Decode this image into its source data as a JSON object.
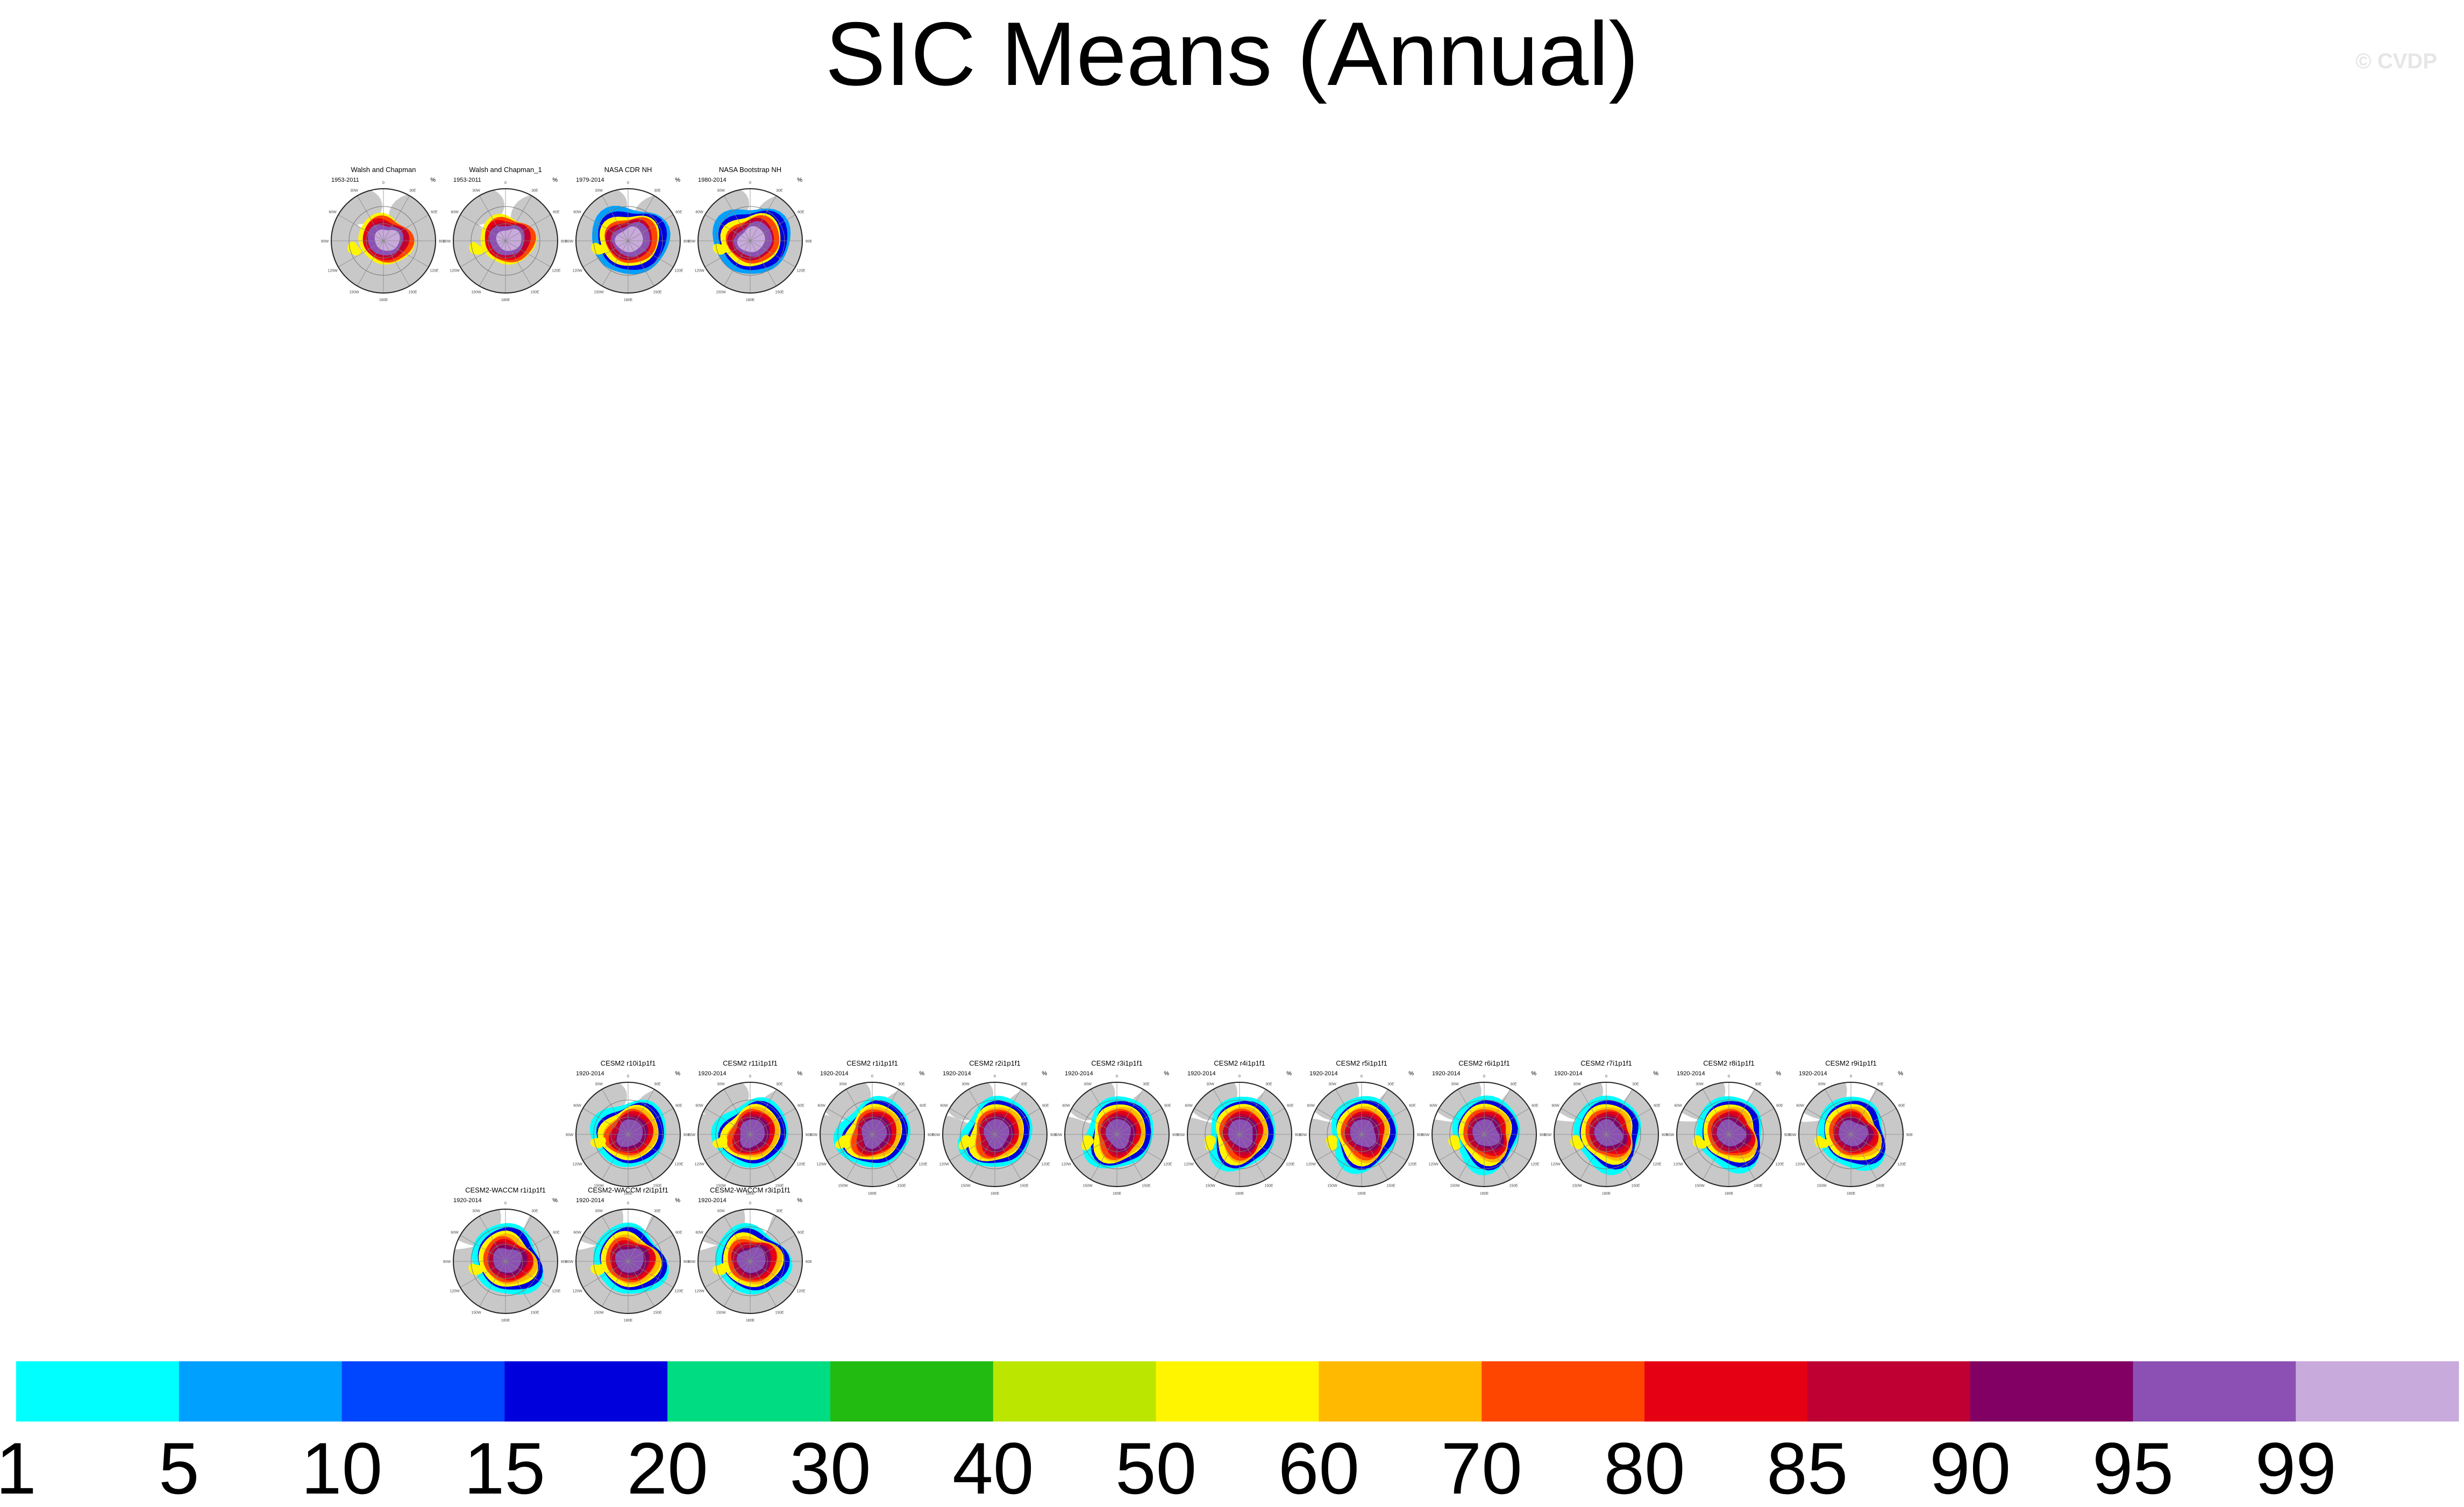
{
  "title": "SIC Means (Annual)",
  "watermark": "© CVDP",
  "colors": {
    "land": "#c8c8c8",
    "ocean": "#ffffff"
  },
  "chart_data": {
    "type": "heatmap",
    "title": "SIC Means (Annual)",
    "units": "%",
    "colorbar": {
      "levels": [
        1,
        5,
        10,
        15,
        20,
        30,
        40,
        50,
        60,
        70,
        80,
        85,
        90,
        95,
        99
      ],
      "colors": [
        "#00ffff",
        "#00a0ff",
        "#0046ff",
        "#0000dc",
        "#00dc82",
        "#22bb11",
        "#bbe600",
        "#fff500",
        "#ffb900",
        "#ff4600",
        "#e60014",
        "#be0032",
        "#820064",
        "#8c50b4",
        "#c8aadc"
      ]
    },
    "panels": [
      {
        "title": "Walsh and Chapman",
        "period": "1953-2011",
        "unit": "%",
        "row": 0,
        "col": 2,
        "style": "obs"
      },
      {
        "title": "Walsh and Chapman_1",
        "period": "1953-2011",
        "unit": "%",
        "row": 0,
        "col": 3,
        "style": "obs"
      },
      {
        "title": "NASA CDR NH",
        "period": "1979-2014",
        "unit": "%",
        "row": 0,
        "col": 4,
        "style": "sat"
      },
      {
        "title": "NASA Bootstrap NH",
        "period": "1980-2014",
        "unit": "%",
        "row": 0,
        "col": 5,
        "style": "sat"
      },
      {
        "title": "CESM2 r10i1p1f1",
        "period": "1920-2014",
        "unit": "%",
        "row": 1,
        "col": 4,
        "style": "model"
      },
      {
        "title": "CESM2 r11i1p1f1",
        "period": "1920-2014",
        "unit": "%",
        "row": 1,
        "col": 5,
        "style": "model"
      },
      {
        "title": "CESM2 r1i1p1f1",
        "period": "1920-2014",
        "unit": "%",
        "row": 1,
        "col": 6,
        "style": "model"
      },
      {
        "title": "CESM2 r2i1p1f1",
        "period": "1920-2014",
        "unit": "%",
        "row": 1,
        "col": 7,
        "style": "model"
      },
      {
        "title": "CESM2 r3i1p1f1",
        "period": "1920-2014",
        "unit": "%",
        "row": 1,
        "col": 8,
        "style": "model"
      },
      {
        "title": "CESM2 r4i1p1f1",
        "period": "1920-2014",
        "unit": "%",
        "row": 1,
        "col": 9,
        "style": "model"
      },
      {
        "title": "CESM2 r5i1p1f1",
        "period": "1920-2014",
        "unit": "%",
        "row": 1,
        "col": 10,
        "style": "model"
      },
      {
        "title": "CESM2 r6i1p1f1",
        "period": "1920-2014",
        "unit": "%",
        "row": 1,
        "col": 11,
        "style": "model"
      },
      {
        "title": "CESM2 r7i1p1f1",
        "period": "1920-2014",
        "unit": "%",
        "row": 1,
        "col": 12,
        "style": "model"
      },
      {
        "title": "CESM2 r8i1p1f1",
        "period": "1920-2014",
        "unit": "%",
        "row": 1,
        "col": 13,
        "style": "model"
      },
      {
        "title": "CESM2 r9i1p1f1",
        "period": "1920-2014",
        "unit": "%",
        "row": 1,
        "col": 14,
        "style": "model"
      },
      {
        "title": "CESM2-WACCM r1i1p1f1",
        "period": "1920-2014",
        "unit": "%",
        "row": 2,
        "col": 3,
        "style": "model"
      },
      {
        "title": "CESM2-WACCM r2i1p1f1",
        "period": "1920-2014",
        "unit": "%",
        "row": 2,
        "col": 4,
        "style": "model"
      },
      {
        "title": "CESM2-WACCM r3i1p1f1",
        "period": "1920-2014",
        "unit": "%",
        "row": 2,
        "col": 5,
        "style": "model"
      }
    ]
  }
}
